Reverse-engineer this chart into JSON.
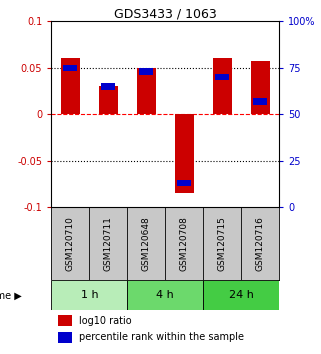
{
  "title": "GDS3433 / 1063",
  "samples": [
    "GSM120710",
    "GSM120711",
    "GSM120648",
    "GSM120708",
    "GSM120715",
    "GSM120716"
  ],
  "log10_ratio": [
    0.06,
    0.03,
    0.05,
    -0.085,
    0.06,
    0.057
  ],
  "percentile_rank": [
    75,
    65,
    73,
    13,
    70,
    57
  ],
  "groups": [
    {
      "label": "1 h",
      "start": 0,
      "end": 2,
      "color": "#b8edb8"
    },
    {
      "label": "4 h",
      "start": 2,
      "end": 4,
      "color": "#6cd96c"
    },
    {
      "label": "24 h",
      "start": 4,
      "end": 6,
      "color": "#44cc44"
    }
  ],
  "bar_color_red": "#cc0000",
  "bar_color_blue": "#0000cc",
  "ylim_left": [
    -0.1,
    0.1
  ],
  "ylim_right": [
    0,
    100
  ],
  "yticks_left": [
    -0.1,
    -0.05,
    0,
    0.05,
    0.1
  ],
  "yticks_right": [
    0,
    25,
    50,
    75,
    100
  ],
  "ytick_labels_left": [
    "-0.1",
    "-0.05",
    "0",
    "0.05",
    "0.1"
  ],
  "ytick_labels_right": [
    "0",
    "25",
    "50",
    "75",
    "100%"
  ],
  "hlines": [
    0.05,
    0,
    -0.05
  ],
  "hline_styles": [
    "dotted",
    "dashed",
    "dotted"
  ],
  "hline_colors": [
    "black",
    "red",
    "black"
  ],
  "bar_width": 0.5,
  "time_label": "time",
  "legend_red": "log10 ratio",
  "legend_blue": "percentile rank within the sample",
  "sample_bg_color": "#c8c8c8",
  "plot_bg": "#ffffff"
}
